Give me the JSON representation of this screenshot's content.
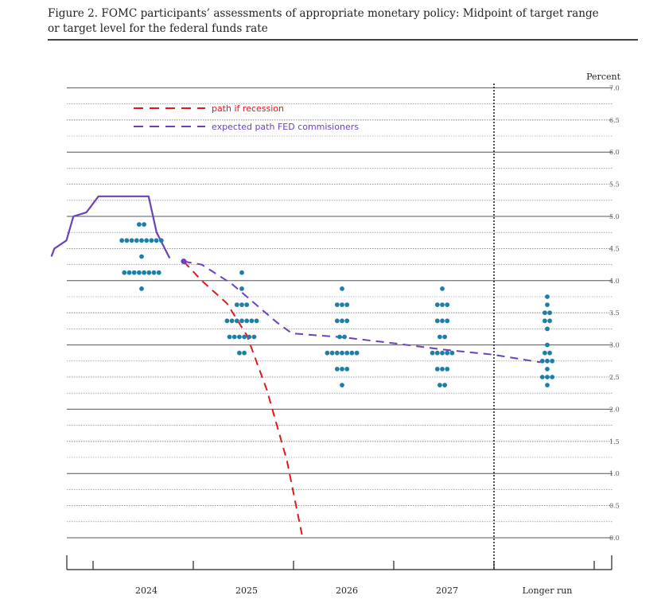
{
  "figure": {
    "caption_line1": "Figure 2.  FOMC participants’ assessments of appropriate monetary policy: Midpoint of target range",
    "caption_line2": "or target level for the federal funds rate"
  },
  "colors": {
    "dots": "#1b7fa8",
    "recession": "#e0191b",
    "expected": "#6b3fbd",
    "grid_major": "#555555",
    "grid_minor": "#777777"
  },
  "chart_data": {
    "type": "scatter",
    "unit_label": "Percent",
    "ylim": [
      0,
      7
    ],
    "yticks": [
      "0.0",
      "0.5",
      "1.0",
      "1.5",
      "2.0",
      "2.5",
      "3.0",
      "3.5",
      "4.0",
      "4.5",
      "5.0",
      "5.5",
      "6.0",
      "6.5",
      "7.0"
    ],
    "categories": [
      "2024",
      "2025",
      "2026",
      "2027",
      "Longer run"
    ],
    "dot_series": [
      {
        "category": "2024",
        "rows": [
          {
            "value": 4.875,
            "count": 2
          },
          {
            "value": 4.625,
            "count": 9
          },
          {
            "value": 4.375,
            "count": 1
          },
          {
            "value": 4.125,
            "count": 8
          },
          {
            "value": 3.875,
            "count": 1
          }
        ]
      },
      {
        "category": "2025",
        "rows": [
          {
            "value": 4.125,
            "count": 1
          },
          {
            "value": 3.875,
            "count": 1
          },
          {
            "value": 3.625,
            "count": 3
          },
          {
            "value": 3.375,
            "count": 7
          },
          {
            "value": 3.125,
            "count": 6
          },
          {
            "value": 2.875,
            "count": 2
          }
        ]
      },
      {
        "category": "2026",
        "rows": [
          {
            "value": 3.875,
            "count": 1
          },
          {
            "value": 3.625,
            "count": 3
          },
          {
            "value": 3.375,
            "count": 3
          },
          {
            "value": 3.125,
            "count": 2
          },
          {
            "value": 2.875,
            "count": 7
          },
          {
            "value": 2.625,
            "count": 3
          },
          {
            "value": 2.375,
            "count": 1
          }
        ]
      },
      {
        "category": "2027",
        "rows": [
          {
            "value": 3.875,
            "count": 1
          },
          {
            "value": 3.625,
            "count": 3
          },
          {
            "value": 3.375,
            "count": 3
          },
          {
            "value": 3.125,
            "count": 2
          },
          {
            "value": 2.875,
            "count": 5
          },
          {
            "value": 2.625,
            "count": 3
          },
          {
            "value": 2.375,
            "count": 2
          }
        ]
      },
      {
        "category": "Longer run",
        "rows": [
          {
            "value": 3.75,
            "count": 1
          },
          {
            "value": 3.625,
            "count": 1
          },
          {
            "value": 3.5,
            "count": 2
          },
          {
            "value": 3.375,
            "count": 2
          },
          {
            "value": 3.25,
            "count": 1
          },
          {
            "value": 3.0,
            "count": 1
          },
          {
            "value": 2.875,
            "count": 2
          },
          {
            "value": 2.75,
            "count": 3
          },
          {
            "value": 2.625,
            "count": 1
          },
          {
            "value": 2.5,
            "count": 3
          },
          {
            "value": 2.375,
            "count": 1
          }
        ]
      }
    ],
    "historical_path": {
      "x": [
        -0.9,
        -0.87,
        -0.75,
        -0.68,
        -0.55,
        -0.43,
        -0.28,
        0.07,
        0.15,
        0.28
      ],
      "y": [
        4.375,
        4.5,
        4.625,
        5.0,
        5.0625,
        5.3125,
        5.3125,
        5.3125,
        4.75,
        4.35
      ]
    },
    "legend": [
      {
        "label": "path if recession",
        "style": "red-dashed"
      },
      {
        "label": "expected path FED commisioners",
        "style": "purple-dashed"
      }
    ],
    "recession_path": {
      "x": [
        0.42,
        0.6,
        0.85,
        1.05,
        1.25,
        1.45,
        1.6
      ],
      "y": [
        4.3,
        4.0,
        3.65,
        3.15,
        2.3,
        1.2,
        0.05
      ]
    },
    "expected_path": {
      "x": [
        0.42,
        0.6,
        0.9,
        1.2,
        1.35,
        1.5,
        2.0,
        2.55,
        3.0,
        3.5,
        3.98
      ],
      "y": [
        4.3,
        4.25,
        3.95,
        3.55,
        3.35,
        3.18,
        3.12,
        3.02,
        2.93,
        2.85,
        2.73
      ]
    }
  }
}
